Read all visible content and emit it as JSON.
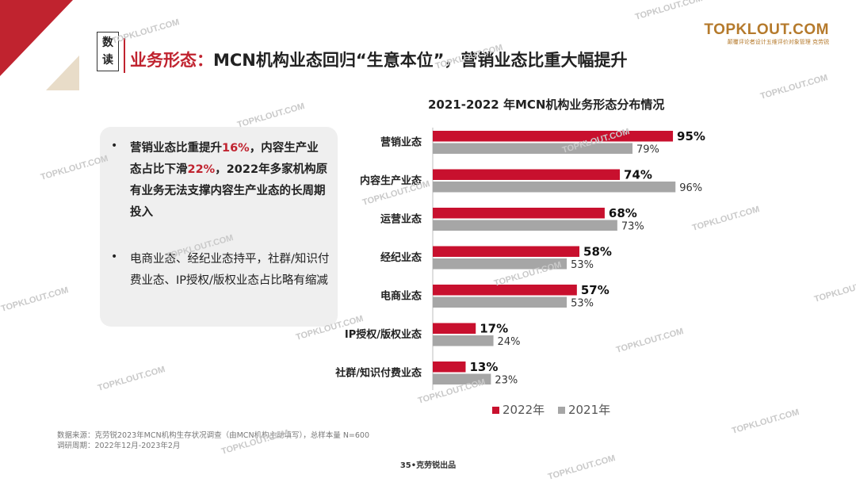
{
  "header": {
    "tag": [
      "数",
      "读"
    ],
    "title_red": "业务形态：",
    "title_black": "MCN机构业态回归“生意本位”，营销业态比重大幅提升"
  },
  "logo": {
    "main": "TOPKLOUT.COM",
    "sub": "颠覆评论者设计五维评价对象管理 克劳锐"
  },
  "summary": {
    "point1": {
      "part1": "营销业态比重提升",
      "highlight1": "16%",
      "part2": "，内容生产业态占比下滑",
      "highlight2": "22%",
      "part3": "，2022年多家机构原有业务无法支撑内容生产业态的长周期投入"
    },
    "point2": "电商业态、经纪业态持平，社群/知识付费业态、IP授权/版权业态占比略有缩减"
  },
  "chart_data": {
    "type": "bar",
    "orientation": "horizontal",
    "title": "2021-2022 年MCN机构业务形态分布情况",
    "categories": [
      "营销业态",
      "内容生产业态",
      "运营业态",
      "经纪业态",
      "电商业态",
      "IP授权/版权业态",
      "社群/知识付费业态"
    ],
    "series": [
      {
        "name": "2022年",
        "color": "#c8102e",
        "values": [
          95,
          74,
          68,
          58,
          57,
          17,
          13
        ],
        "labels": [
          "95%",
          "74%",
          "68%",
          "58%",
          "57%",
          "17%",
          "13%"
        ]
      },
      {
        "name": "2021年",
        "color": "#a6a6a6",
        "values": [
          79,
          96,
          73,
          53,
          53,
          24,
          23
        ],
        "labels": [
          "79%",
          "96%",
          "73%",
          "53%",
          "53%",
          "24%",
          "23%"
        ]
      }
    ],
    "xlim": [
      0,
      100
    ],
    "legend_position": "bottom"
  },
  "footer": {
    "source": "数据来源：克劳锐2023年MCN机构生存状况调查（由MCN机构主动填写），总样本量 N=600",
    "period": "调研周期：2022年12月-2023年2月",
    "page": "35•克劳锐出品"
  },
  "watermark": "TOPKLOUT.COM"
}
